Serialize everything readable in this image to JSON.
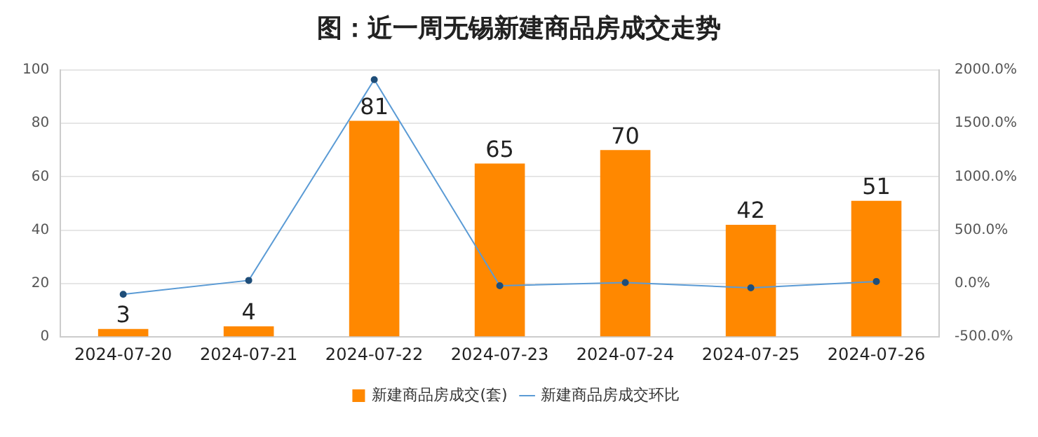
{
  "chart_data": {
    "type": "bar",
    "title": "图：近一周无锡新建商品房成交走势",
    "categories": [
      "2024-07-20",
      "2024-07-21",
      "2024-07-22",
      "2024-07-23",
      "2024-07-24",
      "2024-07-25",
      "2024-07-26"
    ],
    "series": [
      {
        "name": "新建商品房成交(套)",
        "color": "#ff8800",
        "values": [
          3,
          4,
          81,
          65,
          70,
          42,
          51
        ],
        "value_labels": [
          "3",
          "4",
          "81",
          "65",
          "70",
          "42",
          "51"
        ]
      },
      {
        "name": "新建商品房成交环比",
        "type": "line",
        "axis": "y2",
        "color": "#5b9bd5",
        "marker": "circle",
        "values": [
          -100,
          30,
          1910,
          -20,
          10,
          -40,
          20
        ]
      }
    ],
    "ylim": [
      0,
      100
    ],
    "yticks": [
      0,
      20,
      40,
      60,
      80,
      100
    ],
    "y2lim": [
      -500,
      2000
    ],
    "y2ticks": [
      {
        "value": -500,
        "label": "-500.0%"
      },
      {
        "value": 0,
        "label": "0.0%"
      },
      {
        "value": 500,
        "label": "500.0%"
      },
      {
        "value": 1000,
        "label": "1000.0%"
      },
      {
        "value": 1500,
        "label": "1500.0%"
      },
      {
        "value": 2000,
        "label": "2000.0%"
      }
    ],
    "grid": "y",
    "legend": "bottom"
  }
}
